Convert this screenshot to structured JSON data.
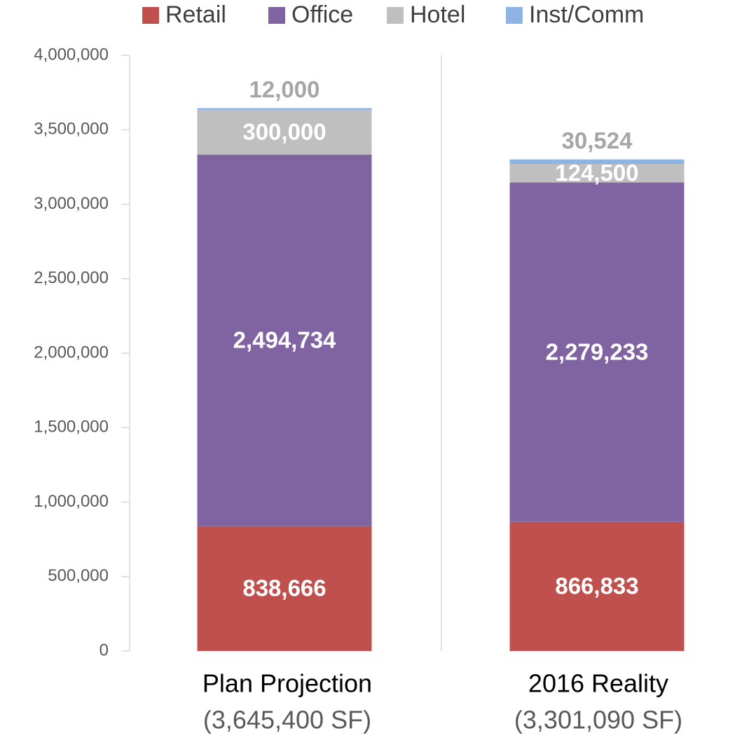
{
  "chart_data": {
    "type": "stacked_bar",
    "categories": [
      "Plan Projection",
      "2016 Reality"
    ],
    "category_sublabels": [
      "(3,645,400 SF)",
      "(3,301,090 SF)"
    ],
    "series": [
      {
        "name": "Retail",
        "color": "#c0504d",
        "values": [
          838666,
          866833
        ],
        "value_labels": [
          "838,666",
          "866,833"
        ]
      },
      {
        "name": "Office",
        "color": "#8064a2",
        "values": [
          2494734,
          2279233
        ],
        "value_labels": [
          "2,494,734",
          "2,279,233"
        ]
      },
      {
        "name": "Hotel",
        "color": "#bfbfbf",
        "values": [
          300000,
          124500
        ],
        "value_labels": [
          "300,000",
          "124,500"
        ]
      },
      {
        "name": "Inst/Comm",
        "color": "#8db4e2",
        "values": [
          12000,
          30524
        ],
        "value_labels": [
          "12,000",
          "30,524"
        ]
      }
    ],
    "ylim": [
      0,
      4000000
    ],
    "yticks": [
      0,
      {
        "value": 500000,
        "label": "500,000"
      },
      {
        "value": 1000000,
        "label": "1,000,000"
      },
      {
        "value": 1500000,
        "label": "1,500,000"
      },
      {
        "value": 2000000,
        "label": "2,000,000"
      },
      {
        "value": 2500000,
        "label": "2,500,000"
      },
      {
        "value": 3000000,
        "label": "3,000,000"
      },
      {
        "value": 3500000,
        "label": "3,500,000"
      },
      {
        "value": 4000000,
        "label": "4,000,000"
      }
    ],
    "legend": "top"
  }
}
